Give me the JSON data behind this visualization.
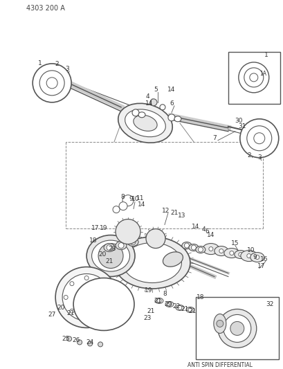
{
  "title": "4303 200 A",
  "background_color": "#ffffff",
  "line_color": "#555555",
  "text_color": "#333333",
  "fig_width": 4.1,
  "fig_height": 5.33,
  "dpi": 100,
  "labels": {
    "top_left": "4303 200 A",
    "bottom_right_box": "ANTI SPIN DIFFERENTIAL"
  },
  "callout_numbers": [
    1,
    2,
    3,
    4,
    5,
    6,
    7,
    8,
    9,
    10,
    11,
    12,
    13,
    14,
    15,
    16,
    17,
    18,
    19,
    20,
    21,
    22,
    23,
    24,
    25,
    26,
    27,
    28,
    29,
    30,
    31,
    32
  ]
}
